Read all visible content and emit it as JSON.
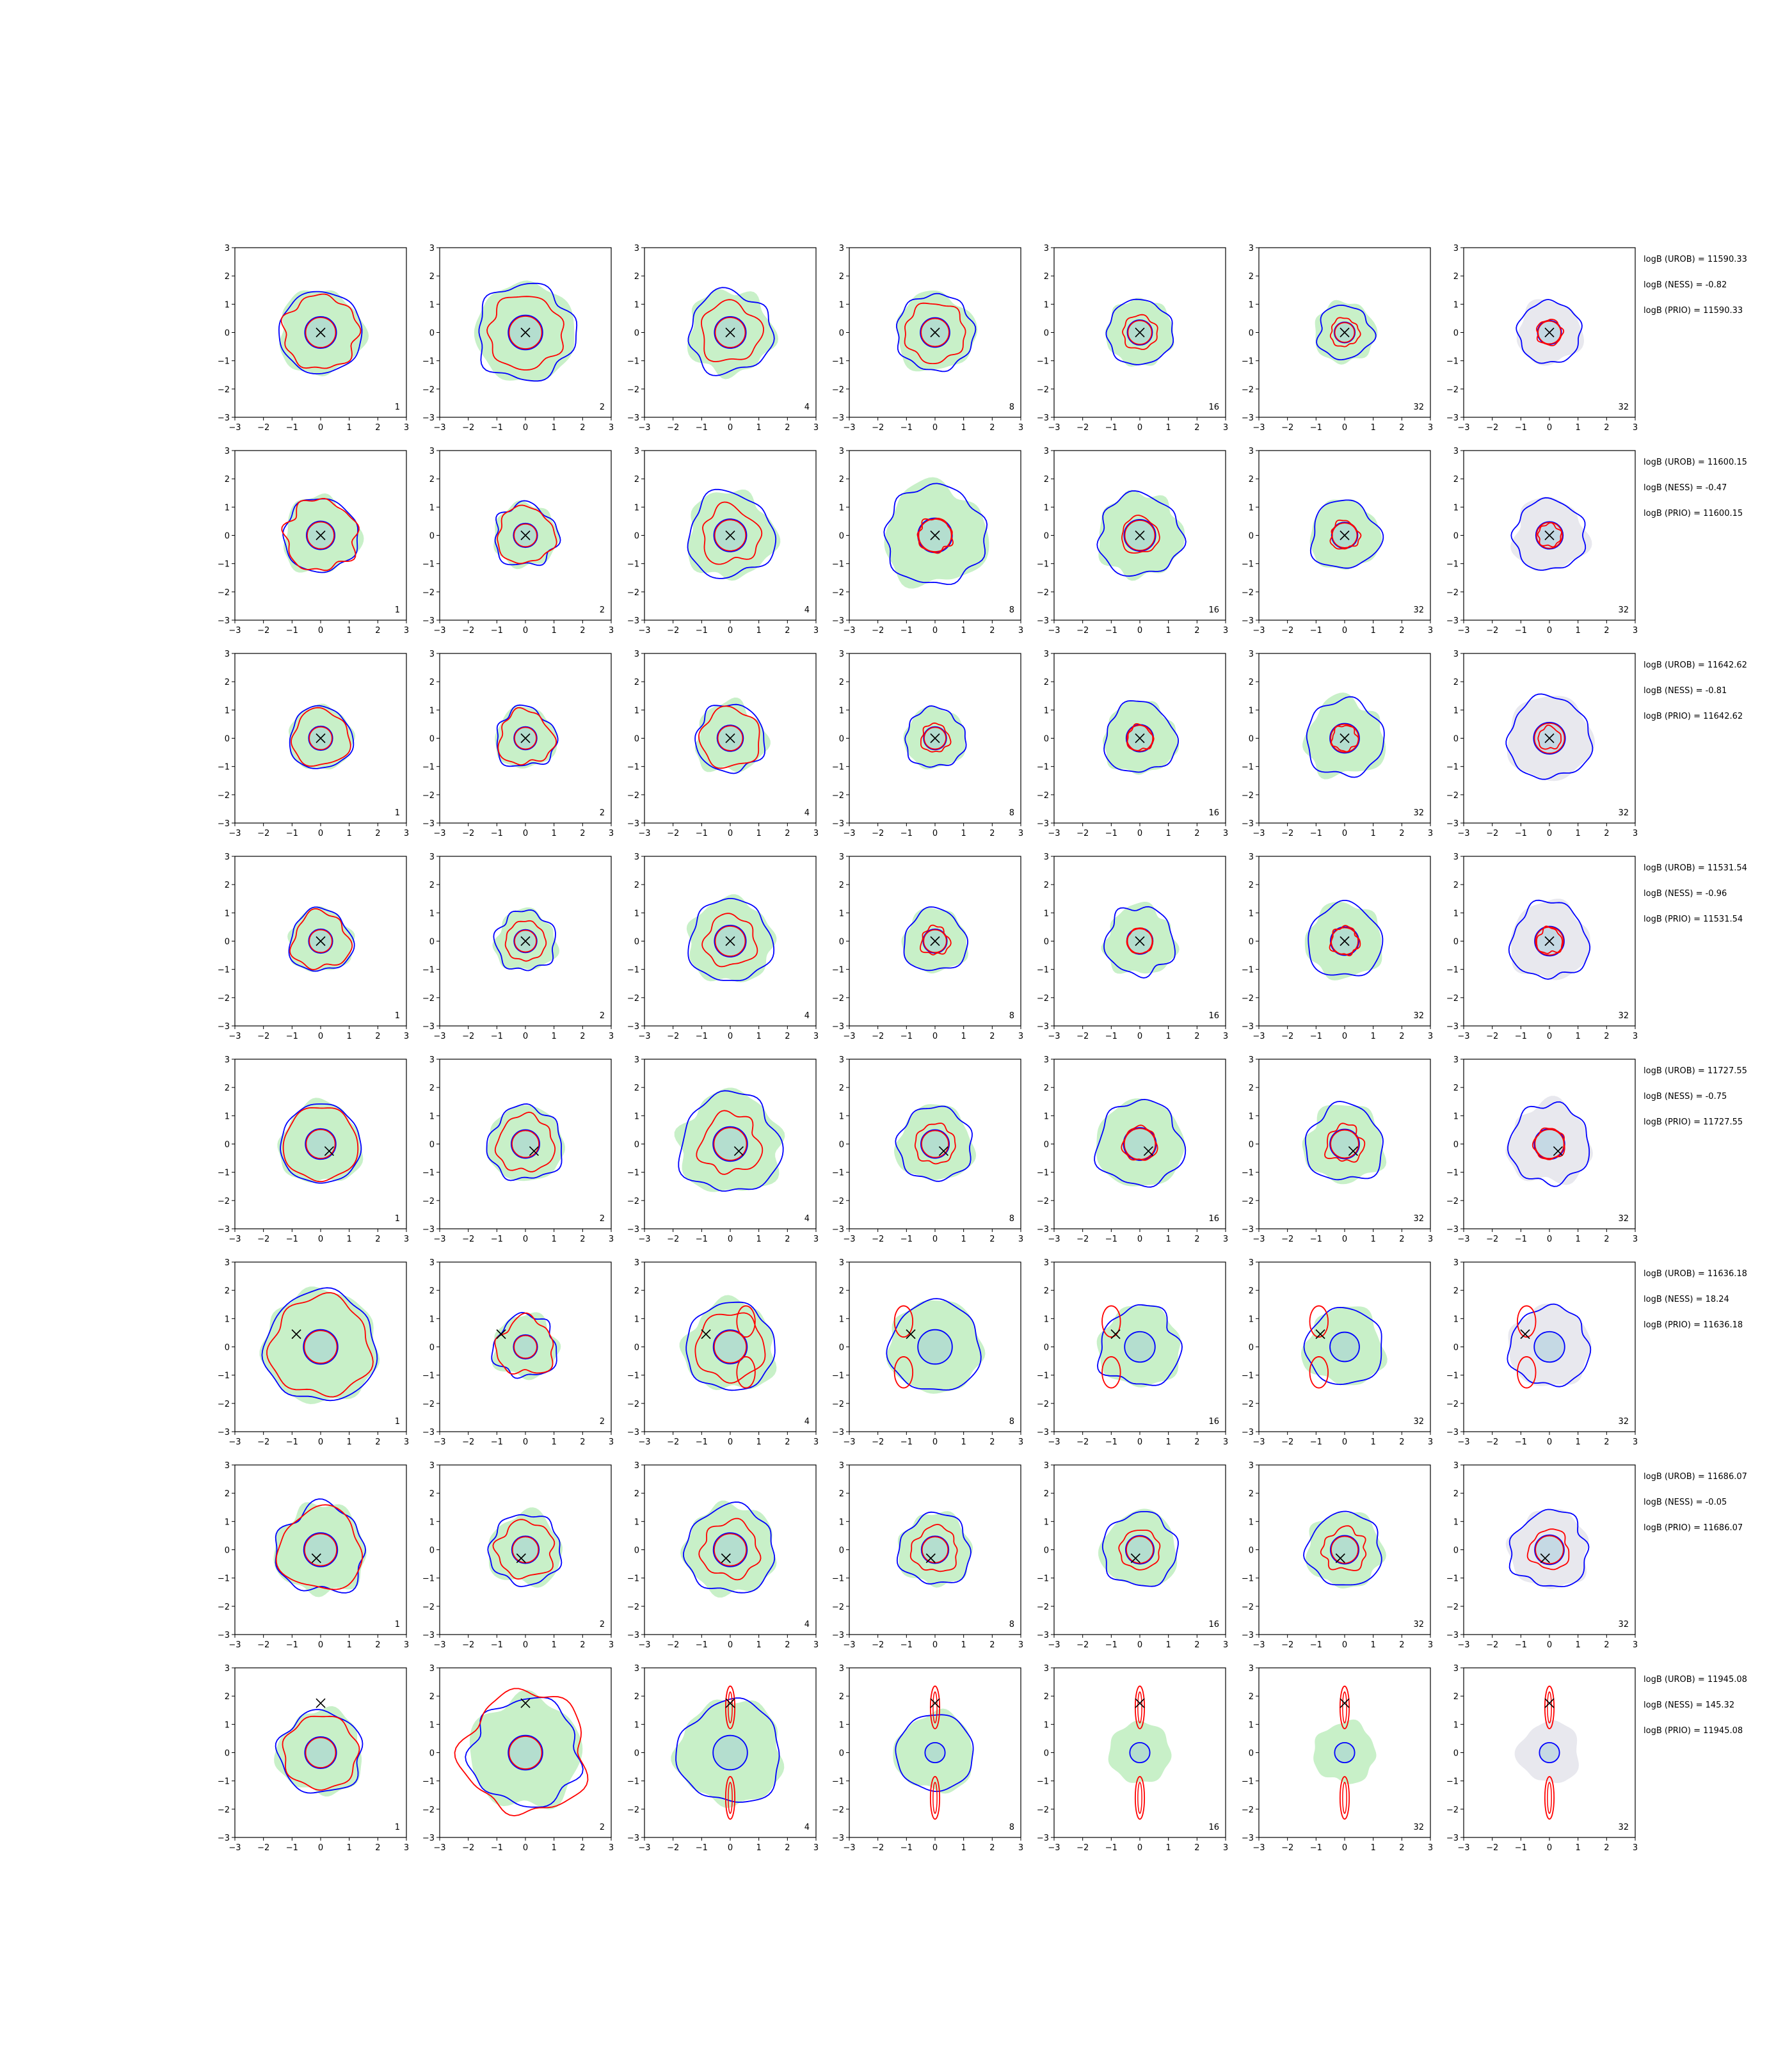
{
  "chart_data": {
    "type": "contour-grid",
    "axis": {
      "xlim": [
        -3,
        3
      ],
      "ylim": [
        -3,
        3
      ],
      "ticks": [
        -3,
        -2,
        -1,
        0,
        1,
        2,
        3
      ],
      "tick_labels": [
        "−3",
        "−2",
        "−1",
        "0",
        "1",
        "2",
        "3"
      ],
      "grid": false
    },
    "column_labels": [
      "1",
      "2",
      "4",
      "8",
      "16",
      "32",
      "32"
    ],
    "colors": {
      "outer_contour": "#0000ff",
      "inner_contour": "#0000ff",
      "alt_contour": "#ff0000",
      "fill": "#c8f0c8",
      "fill_last_column": "#e8e8ee",
      "inner_fill": "#9cc8d8",
      "marker": "#000000"
    },
    "marker": "x",
    "rows": [
      {
        "marker_xy": [
          0.0,
          0.0
        ],
        "outer_r": [
          1.45,
          1.7,
          1.45,
          1.35,
          1.15,
          0.95,
          1.1
        ],
        "alt_r": [
          1.3,
          1.3,
          1.05,
          1.05,
          0.6,
          0.5,
          0.45
        ],
        "labels": [
          "logB (UROB) = 11590.33",
          "logB (NESS) = -0.82",
          "logB (PRIO) = 11590.33"
        ]
      },
      {
        "marker_xy": [
          0.0,
          0.0
        ],
        "outer_r": [
          1.3,
          1.1,
          1.5,
          1.75,
          1.45,
          1.2,
          1.25
        ],
        "alt_r": [
          1.25,
          1.0,
          1.0,
          0.6,
          0.65,
          0.5,
          0.4
        ],
        "labels": [
          "logB (UROB) = 11600.15",
          "logB (NESS) = -0.47",
          "logB (PRIO) = 11600.15"
        ]
      },
      {
        "marker_xy": [
          0.0,
          0.0
        ],
        "outer_r": [
          1.1,
          1.05,
          1.2,
          1.05,
          1.25,
          1.35,
          1.45
        ],
        "alt_r": [
          1.0,
          0.95,
          1.05,
          0.5,
          0.45,
          0.45,
          0.4
        ],
        "labels": [
          "logB (UROB) = 11642.62",
          "logB (NESS) = -0.81",
          "logB (PRIO) = 11642.62"
        ]
      },
      {
        "marker_xy": [
          0.0,
          0.0
        ],
        "outer_r": [
          1.1,
          1.05,
          1.45,
          1.1,
          1.2,
          1.3,
          1.35
        ],
        "alt_r": [
          1.0,
          0.7,
          0.9,
          0.5,
          0.45,
          0.5,
          0.45
        ],
        "labels": [
          "logB (UROB) = 11531.54",
          "logB (NESS) = -0.96",
          "logB (PRIO) = 11531.54"
        ]
      },
      {
        "marker_xy": [
          0.3,
          -0.25
        ],
        "outer_r": [
          1.4,
          1.3,
          1.75,
          1.3,
          1.5,
          1.35,
          1.4
        ],
        "alt_r": [
          1.3,
          1.0,
          1.05,
          0.7,
          0.6,
          0.65,
          0.55
        ],
        "labels": [
          "logB (UROB) = 11727.55",
          "logB (NESS) = -0.75",
          "logB (PRIO) = 11727.55"
        ]
      },
      {
        "marker_xy": [
          -0.85,
          0.45
        ],
        "outer_r": [
          1.95,
          1.1,
          1.55,
          1.6,
          1.4,
          1.35,
          1.4
        ],
        "alt_r": [
          1.75,
          1.0,
          1.2,
          0.0,
          0.0,
          0.0,
          0.0
        ],
        "labels": [
          "logB (UROB) = 11636.18",
          "logB (NESS) = 18.24",
          "logB (PRIO) = 11636.18"
        ]
      },
      {
        "marker_xy": [
          -0.15,
          -0.3
        ],
        "outer_r": [
          1.55,
          1.25,
          1.55,
          1.25,
          1.3,
          1.3,
          1.35
        ],
        "alt_r": [
          1.45,
          1.0,
          1.0,
          0.8,
          0.7,
          0.75,
          0.7
        ],
        "labels": [
          "logB (UROB) = 11686.07",
          "logB (NESS) = -0.05",
          "logB (PRIO) = 11686.07"
        ]
      },
      {
        "marker_xy": [
          0.0,
          1.75
        ],
        "outer_r": [
          1.45,
          1.9,
          1.8,
          1.35,
          0.0,
          0.0,
          0.0
        ],
        "alt_r": [
          1.3,
          2.15,
          0.0,
          0.0,
          0.0,
          0.0,
          0.0
        ],
        "labels": [
          "logB (UROB) = 11945.08",
          "logB (NESS) = 145.32",
          "logB (PRIO) = 11945.08"
        ]
      }
    ]
  }
}
